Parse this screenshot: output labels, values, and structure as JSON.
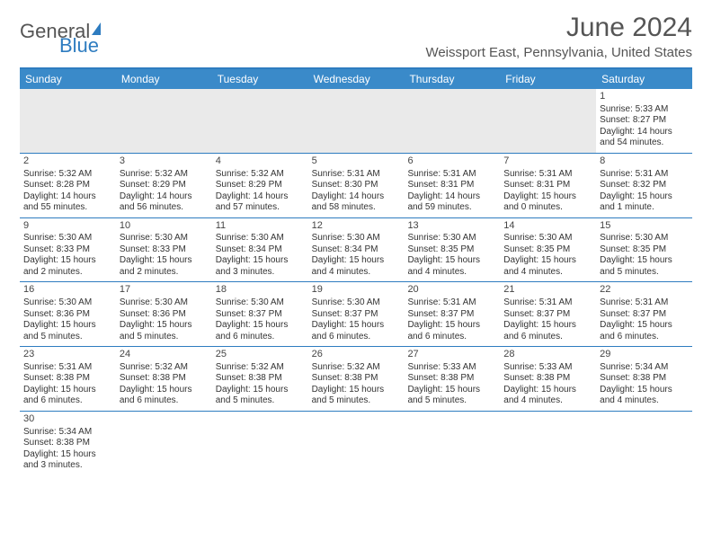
{
  "brand": {
    "general": "General",
    "blue": "Blue"
  },
  "title": "June 2024",
  "location": "Weissport East, Pennsylvania, United States",
  "colors": {
    "accent": "#2e7cc0",
    "header_bg": "#3a8ac9",
    "empty_bg": "#eaeaea",
    "text": "#333333"
  },
  "days_of_week": [
    "Sunday",
    "Monday",
    "Tuesday",
    "Wednesday",
    "Thursday",
    "Friday",
    "Saturday"
  ],
  "weeks": [
    [
      null,
      null,
      null,
      null,
      null,
      null,
      {
        "d": "1",
        "sr": "Sunrise: 5:33 AM",
        "ss": "Sunset: 8:27 PM",
        "dl": "Daylight: 14 hours and 54 minutes."
      }
    ],
    [
      {
        "d": "2",
        "sr": "Sunrise: 5:32 AM",
        "ss": "Sunset: 8:28 PM",
        "dl": "Daylight: 14 hours and 55 minutes."
      },
      {
        "d": "3",
        "sr": "Sunrise: 5:32 AM",
        "ss": "Sunset: 8:29 PM",
        "dl": "Daylight: 14 hours and 56 minutes."
      },
      {
        "d": "4",
        "sr": "Sunrise: 5:32 AM",
        "ss": "Sunset: 8:29 PM",
        "dl": "Daylight: 14 hours and 57 minutes."
      },
      {
        "d": "5",
        "sr": "Sunrise: 5:31 AM",
        "ss": "Sunset: 8:30 PM",
        "dl": "Daylight: 14 hours and 58 minutes."
      },
      {
        "d": "6",
        "sr": "Sunrise: 5:31 AM",
        "ss": "Sunset: 8:31 PM",
        "dl": "Daylight: 14 hours and 59 minutes."
      },
      {
        "d": "7",
        "sr": "Sunrise: 5:31 AM",
        "ss": "Sunset: 8:31 PM",
        "dl": "Daylight: 15 hours and 0 minutes."
      },
      {
        "d": "8",
        "sr": "Sunrise: 5:31 AM",
        "ss": "Sunset: 8:32 PM",
        "dl": "Daylight: 15 hours and 1 minute."
      }
    ],
    [
      {
        "d": "9",
        "sr": "Sunrise: 5:30 AM",
        "ss": "Sunset: 8:33 PM",
        "dl": "Daylight: 15 hours and 2 minutes."
      },
      {
        "d": "10",
        "sr": "Sunrise: 5:30 AM",
        "ss": "Sunset: 8:33 PM",
        "dl": "Daylight: 15 hours and 2 minutes."
      },
      {
        "d": "11",
        "sr": "Sunrise: 5:30 AM",
        "ss": "Sunset: 8:34 PM",
        "dl": "Daylight: 15 hours and 3 minutes."
      },
      {
        "d": "12",
        "sr": "Sunrise: 5:30 AM",
        "ss": "Sunset: 8:34 PM",
        "dl": "Daylight: 15 hours and 4 minutes."
      },
      {
        "d": "13",
        "sr": "Sunrise: 5:30 AM",
        "ss": "Sunset: 8:35 PM",
        "dl": "Daylight: 15 hours and 4 minutes."
      },
      {
        "d": "14",
        "sr": "Sunrise: 5:30 AM",
        "ss": "Sunset: 8:35 PM",
        "dl": "Daylight: 15 hours and 4 minutes."
      },
      {
        "d": "15",
        "sr": "Sunrise: 5:30 AM",
        "ss": "Sunset: 8:35 PM",
        "dl": "Daylight: 15 hours and 5 minutes."
      }
    ],
    [
      {
        "d": "16",
        "sr": "Sunrise: 5:30 AM",
        "ss": "Sunset: 8:36 PM",
        "dl": "Daylight: 15 hours and 5 minutes."
      },
      {
        "d": "17",
        "sr": "Sunrise: 5:30 AM",
        "ss": "Sunset: 8:36 PM",
        "dl": "Daylight: 15 hours and 5 minutes."
      },
      {
        "d": "18",
        "sr": "Sunrise: 5:30 AM",
        "ss": "Sunset: 8:37 PM",
        "dl": "Daylight: 15 hours and 6 minutes."
      },
      {
        "d": "19",
        "sr": "Sunrise: 5:30 AM",
        "ss": "Sunset: 8:37 PM",
        "dl": "Daylight: 15 hours and 6 minutes."
      },
      {
        "d": "20",
        "sr": "Sunrise: 5:31 AM",
        "ss": "Sunset: 8:37 PM",
        "dl": "Daylight: 15 hours and 6 minutes."
      },
      {
        "d": "21",
        "sr": "Sunrise: 5:31 AM",
        "ss": "Sunset: 8:37 PM",
        "dl": "Daylight: 15 hours and 6 minutes."
      },
      {
        "d": "22",
        "sr": "Sunrise: 5:31 AM",
        "ss": "Sunset: 8:37 PM",
        "dl": "Daylight: 15 hours and 6 minutes."
      }
    ],
    [
      {
        "d": "23",
        "sr": "Sunrise: 5:31 AM",
        "ss": "Sunset: 8:38 PM",
        "dl": "Daylight: 15 hours and 6 minutes."
      },
      {
        "d": "24",
        "sr": "Sunrise: 5:32 AM",
        "ss": "Sunset: 8:38 PM",
        "dl": "Daylight: 15 hours and 6 minutes."
      },
      {
        "d": "25",
        "sr": "Sunrise: 5:32 AM",
        "ss": "Sunset: 8:38 PM",
        "dl": "Daylight: 15 hours and 5 minutes."
      },
      {
        "d": "26",
        "sr": "Sunrise: 5:32 AM",
        "ss": "Sunset: 8:38 PM",
        "dl": "Daylight: 15 hours and 5 minutes."
      },
      {
        "d": "27",
        "sr": "Sunrise: 5:33 AM",
        "ss": "Sunset: 8:38 PM",
        "dl": "Daylight: 15 hours and 5 minutes."
      },
      {
        "d": "28",
        "sr": "Sunrise: 5:33 AM",
        "ss": "Sunset: 8:38 PM",
        "dl": "Daylight: 15 hours and 4 minutes."
      },
      {
        "d": "29",
        "sr": "Sunrise: 5:34 AM",
        "ss": "Sunset: 8:38 PM",
        "dl": "Daylight: 15 hours and 4 minutes."
      }
    ],
    [
      {
        "d": "30",
        "sr": "Sunrise: 5:34 AM",
        "ss": "Sunset: 8:38 PM",
        "dl": "Daylight: 15 hours and 3 minutes."
      },
      null,
      null,
      null,
      null,
      null,
      null
    ]
  ]
}
